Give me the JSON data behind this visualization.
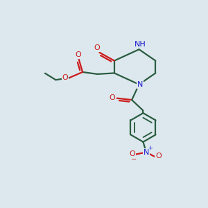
{
  "bg": "#dce8ee",
  "bc": "#2a5c3f",
  "nc": "#1a1acc",
  "oc": "#cc1a1a",
  "lw": 1.6,
  "fs": 8.0,
  "figsize": [
    3.0,
    3.0
  ],
  "dpi": 100,
  "xlim": [
    0,
    10
  ],
  "ylim": [
    0,
    10
  ]
}
